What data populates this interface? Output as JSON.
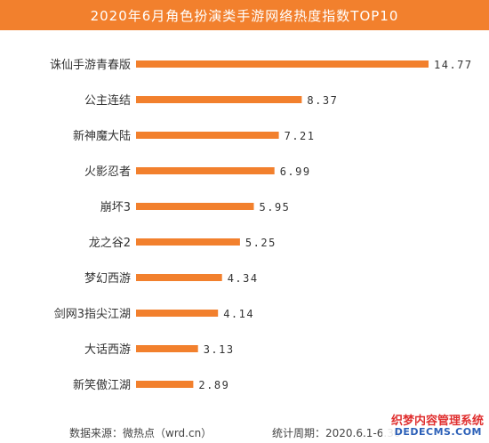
{
  "title": "2020年6月角色扮演类手游网络热度指数TOP10",
  "colors": {
    "accent": "#f2802d",
    "bar": "#f2802d"
  },
  "chart_data": {
    "type": "bar",
    "orientation": "horizontal",
    "categories": [
      "诛仙手游青春版",
      "公主连结",
      "新神魔大陆",
      "火影忍者",
      "崩坏3",
      "龙之谷2",
      "梦幻西游",
      "剑网3指尖江湖",
      "大话西游",
      "新笑傲江湖"
    ],
    "values": [
      14.77,
      8.37,
      7.21,
      6.99,
      5.95,
      5.25,
      4.34,
      4.14,
      3.13,
      2.89
    ],
    "value_labels": [
      "14.77",
      "8.37",
      "7.21",
      "6.99",
      "5.95",
      "5.25",
      "4.34",
      "4.14",
      "3.13",
      "2.89"
    ],
    "xlim": [
      0,
      14.77
    ],
    "grid": false,
    "legend": "none"
  },
  "footer": {
    "source": "数据来源：微热点（wrd.cn）",
    "period": "统计周期：2020.6.1-6.30"
  },
  "watermark": {
    "line1": "织梦内容管理系统",
    "line2": "DEDECMS.COM"
  }
}
